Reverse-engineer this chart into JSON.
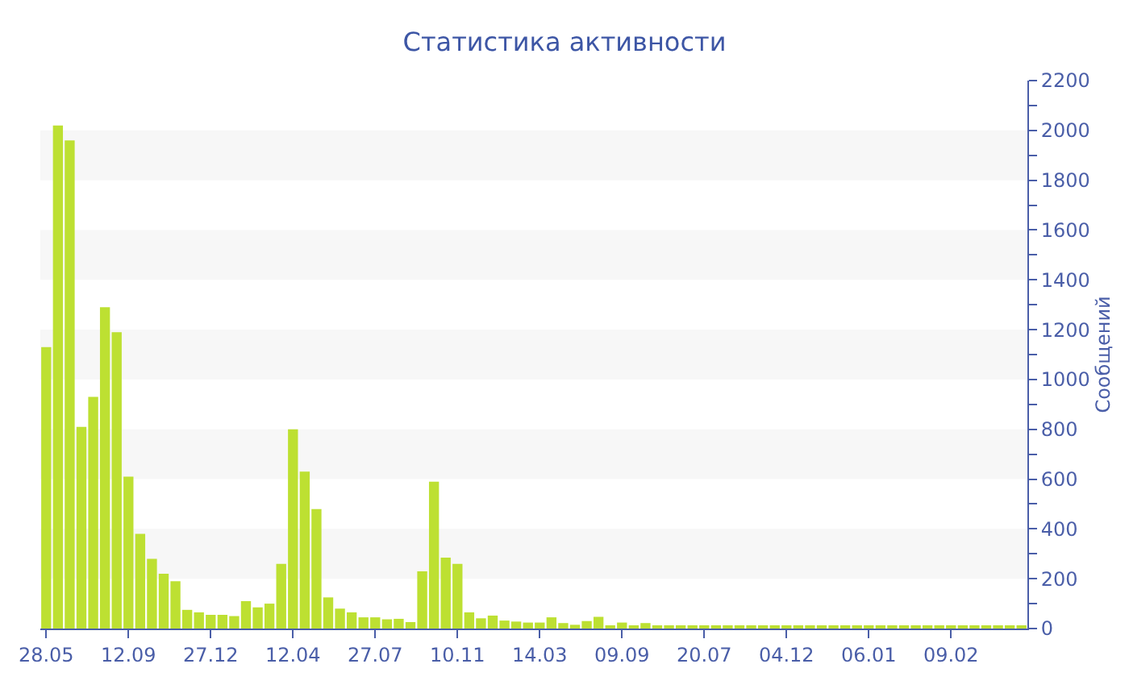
{
  "chart_data": {
    "type": "bar",
    "title": "Статистика активности",
    "ylabel": "Сообщений",
    "categories": [
      "28.05",
      null,
      null,
      null,
      null,
      null,
      null,
      "12.09",
      null,
      null,
      null,
      null,
      null,
      null,
      "27.12",
      null,
      null,
      null,
      null,
      null,
      null,
      "12.04",
      null,
      null,
      null,
      null,
      null,
      null,
      "27.07",
      null,
      null,
      null,
      null,
      null,
      null,
      "10.11",
      null,
      null,
      null,
      null,
      null,
      null,
      "14.03",
      null,
      null,
      null,
      null,
      null,
      null,
      "09.09",
      null,
      null,
      null,
      null,
      null,
      null,
      "20.07",
      null,
      null,
      null,
      null,
      null,
      null,
      "04.12",
      null,
      null,
      null,
      null,
      null,
      null,
      "06.01",
      null,
      null,
      null,
      null,
      null,
      null,
      "09.02",
      null,
      null,
      null,
      null,
      null,
      null
    ],
    "values": [
      1130,
      2020,
      1960,
      810,
      930,
      1290,
      1190,
      610,
      380,
      280,
      220,
      190,
      75,
      65,
      55,
      55,
      50,
      110,
      85,
      100,
      260,
      800,
      630,
      480,
      125,
      80,
      65,
      45,
      45,
      37,
      39,
      26,
      230,
      590,
      285,
      260,
      65,
      41,
      52,
      32,
      28,
      24,
      24,
      45,
      22,
      15,
      30,
      47,
      13,
      24,
      13,
      22,
      13,
      11,
      11,
      9,
      13,
      11,
      9,
      10,
      9,
      9,
      10,
      9,
      8,
      9,
      10,
      9,
      8,
      9,
      9,
      10,
      9,
      8,
      9,
      9,
      8,
      9,
      8,
      8,
      9,
      8,
      8,
      9
    ],
    "color": "#bde032",
    "ylim": [
      0,
      2200
    ],
    "yticks": [
      0,
      {
        "value": 100,
        "label": null
      },
      200,
      {
        "value": 300,
        "label": null
      },
      400,
      {
        "value": 500,
        "label": null
      },
      600,
      {
        "value": 700,
        "label": null
      },
      800,
      {
        "value": 900,
        "label": null
      },
      1000,
      {
        "value": 1100,
        "label": null
      },
      1200,
      {
        "value": 1300,
        "label": null
      },
      1400,
      {
        "value": 1500,
        "label": null
      },
      1600,
      {
        "value": 1700,
        "label": null
      },
      1800,
      {
        "value": 1900,
        "label": null
      },
      2000,
      {
        "value": 2100,
        "label": null
      },
      2200
    ],
    "bands": [
      {
        "axis": "y",
        "from": 200,
        "to": 400,
        "color": "#f7f7f7"
      },
      {
        "axis": "y",
        "from": 600,
        "to": 800,
        "color": "#f7f7f7"
      },
      {
        "axis": "y",
        "from": 1000,
        "to": 1200,
        "color": "#f7f7f7"
      },
      {
        "axis": "y",
        "from": 1400,
        "to": 1600,
        "color": "#f7f7f7"
      },
      {
        "axis": "y",
        "from": 1800,
        "to": 2000,
        "color": "#f7f7f7"
      }
    ],
    "grid": false,
    "legend": false
  }
}
